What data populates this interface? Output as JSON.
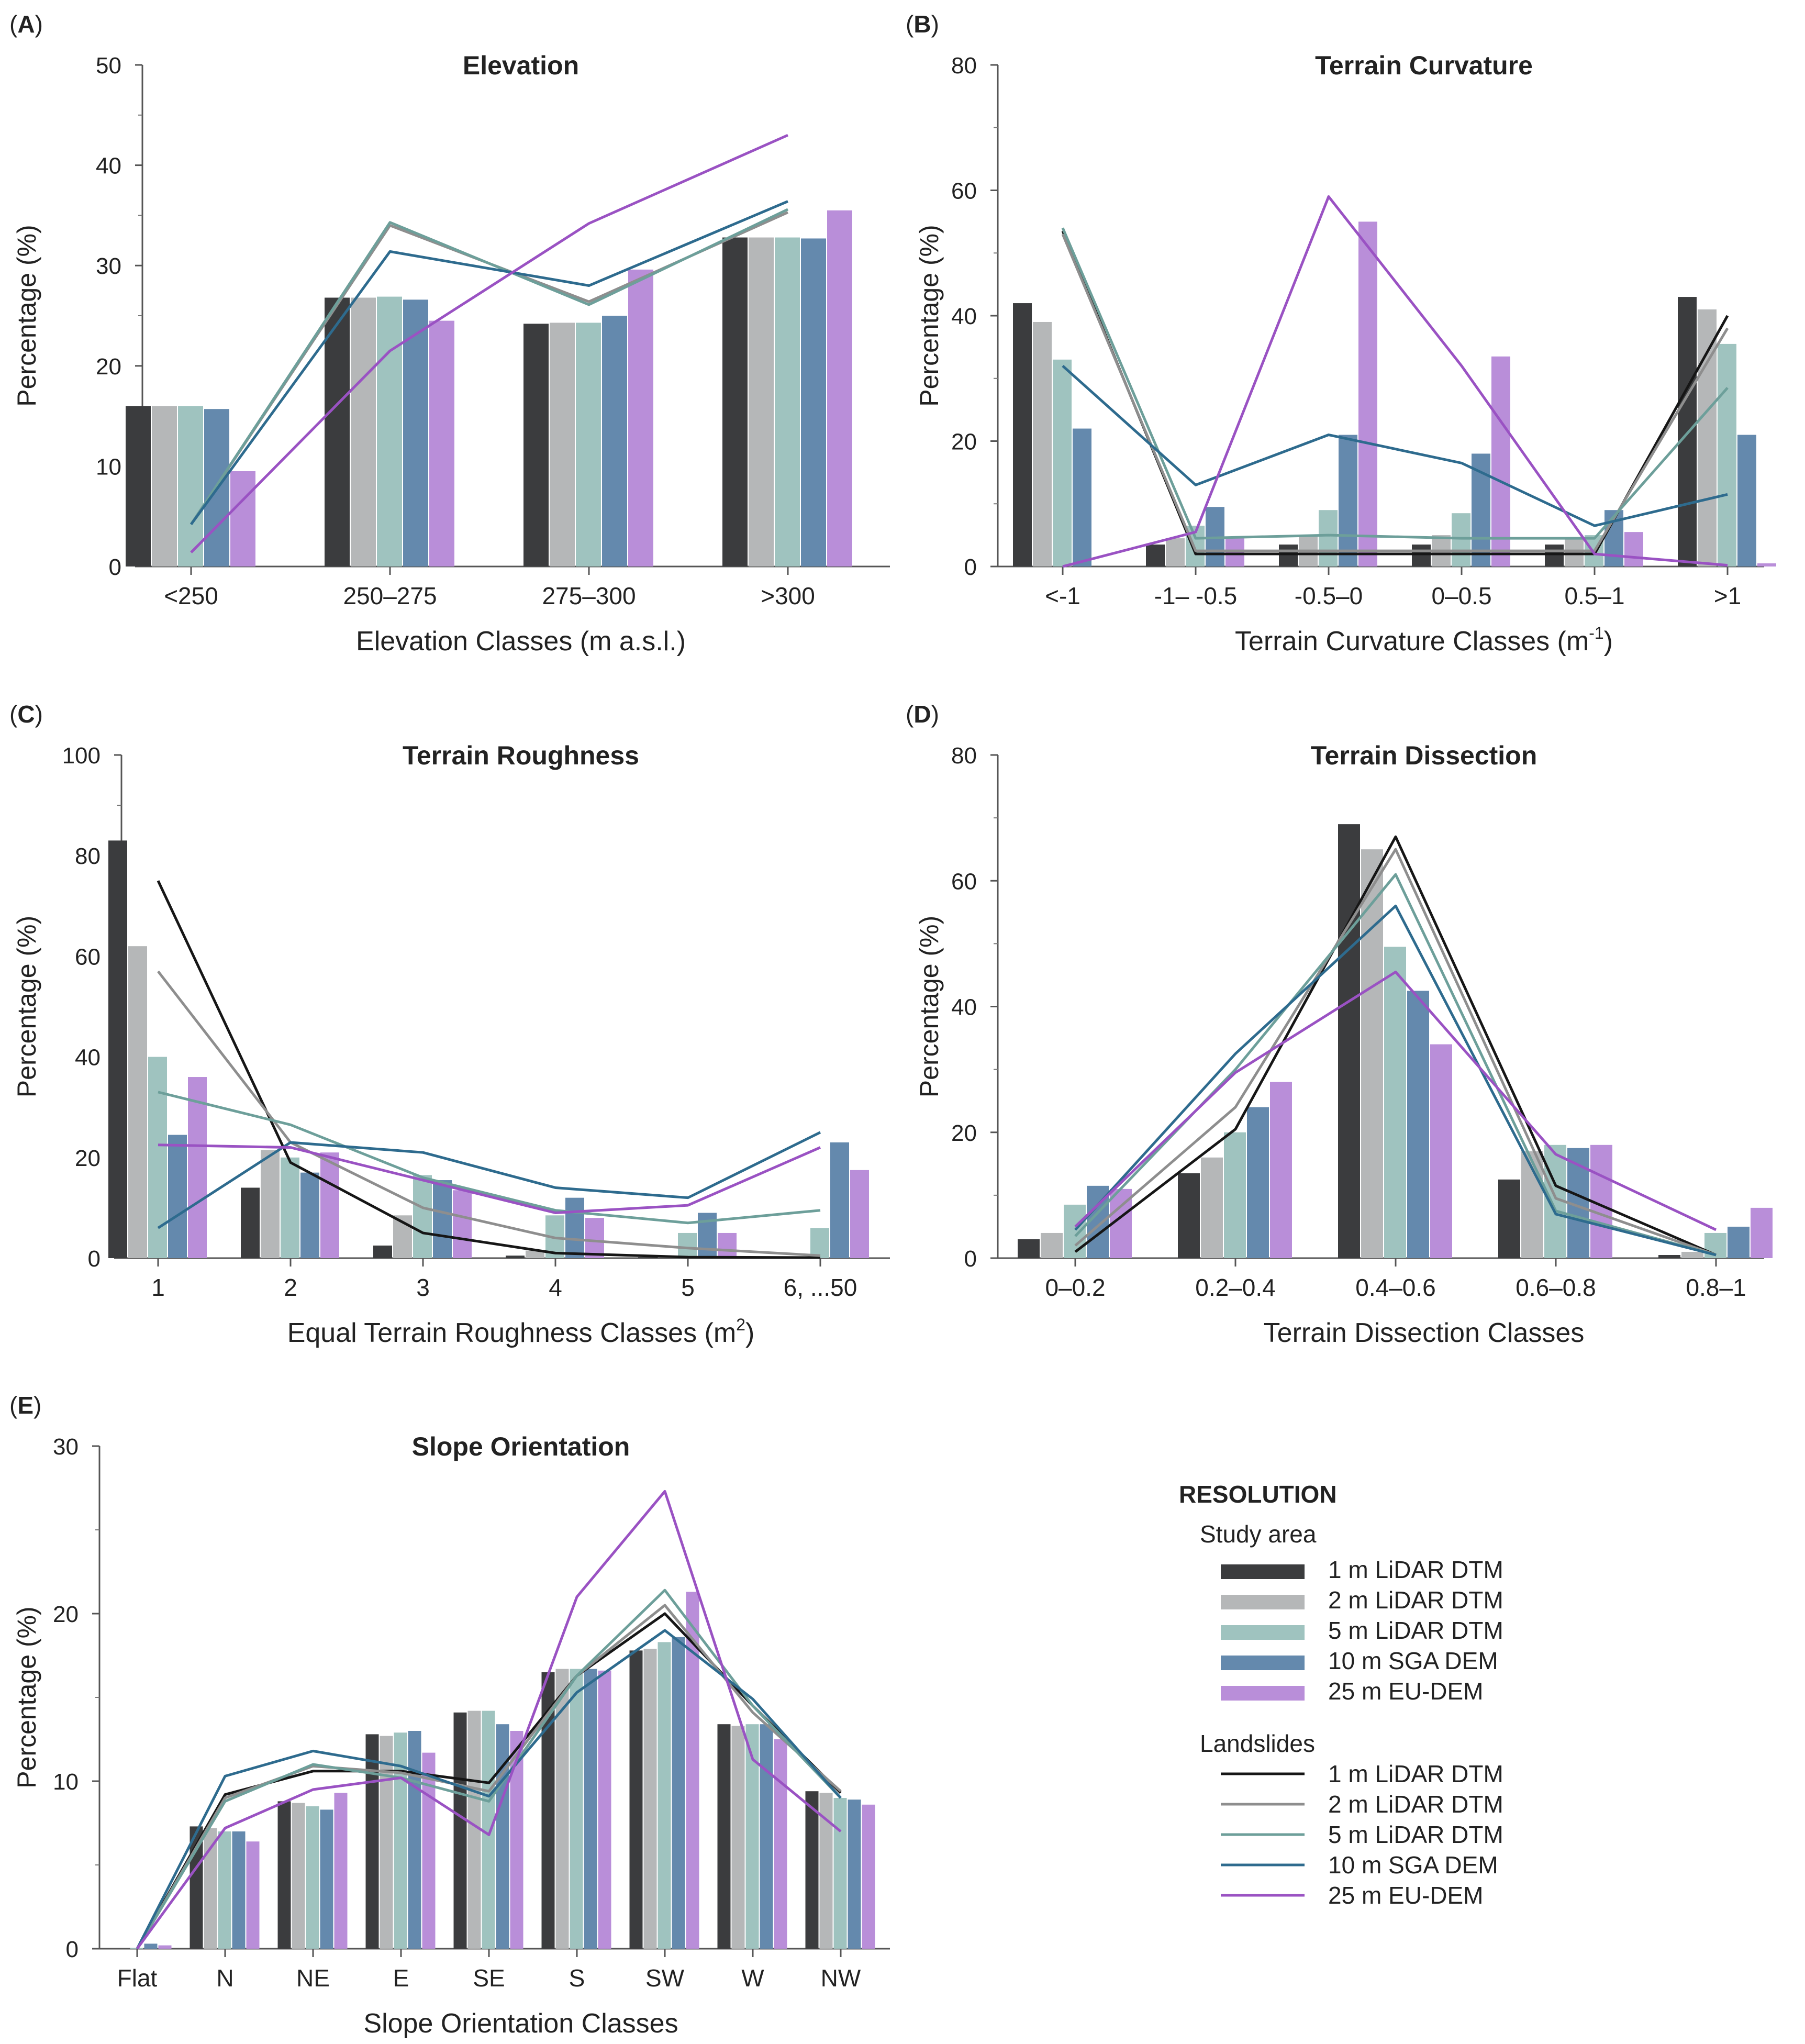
{
  "colors": {
    "r1": "#3b3c3e",
    "r2": "#b5b7b8",
    "r5": "#9fc3bf",
    "r10": "#6489ad",
    "r25": "#b98ed9",
    "l1": "#161616",
    "l2": "#8e8e8e",
    "l5": "#6d9f9a",
    "l10": "#2e6b8e",
    "l25": "#9a52c3"
  },
  "chart_data": [
    {
      "id": "A",
      "panel_label_letter": "A",
      "type": "bar+line",
      "title": "Elevation",
      "xlabel": "Elevation Classes (m a.s.l.)",
      "ylabel": "Percentage (%)",
      "ylim": [
        0,
        50
      ],
      "yticks": [
        "0",
        "10",
        "20",
        "30",
        "40",
        "50"
      ],
      "categories": [
        "<250",
        "250–275",
        "275–300",
        ">300"
      ],
      "bars": [
        {
          "name": "1 m LiDAR DTM",
          "color": "r1",
          "values": [
            16,
            26.8,
            24.2,
            32.8
          ]
        },
        {
          "name": "2 m LiDAR DTM",
          "color": "r2",
          "values": [
            16,
            26.8,
            24.3,
            32.8
          ]
        },
        {
          "name": "5 m LiDAR DTM",
          "color": "r5",
          "values": [
            16,
            26.9,
            24.3,
            32.8
          ]
        },
        {
          "name": "10 m SGA DEM",
          "color": "r10",
          "values": [
            15.7,
            26.6,
            25,
            32.7
          ]
        },
        {
          "name": "25 m EU-DEM",
          "color": "r25",
          "values": [
            9.5,
            24.5,
            29.6,
            35.5
          ]
        }
      ],
      "lines": [
        {
          "name": "1 m LiDAR DTM",
          "color": "l1",
          "values": [
            null,
            null,
            null,
            null
          ]
        },
        {
          "name": "2 m LiDAR DTM",
          "color": "l2",
          "values": [
            4.2,
            34,
            26.4,
            35.3
          ]
        },
        {
          "name": "5 m LiDAR DTM",
          "color": "l5",
          "values": [
            4.2,
            34.3,
            26.1,
            35.6
          ]
        },
        {
          "name": "10 m SGA DEM",
          "color": "l10",
          "values": [
            4.2,
            31.4,
            28,
            36.4
          ]
        },
        {
          "name": "25 m EU-DEM",
          "color": "l25",
          "values": [
            1.4,
            21.5,
            34.2,
            43
          ]
        }
      ]
    },
    {
      "id": "B",
      "panel_label_letter": "B",
      "type": "bar+line",
      "title": "Terrain Curvature",
      "xlabel": "Terrain Curvature Classes (m",
      "xlabel_sup": "-1",
      "xlabel_tail": ")",
      "ylabel": "Percentage (%)",
      "ylim": [
        0,
        80
      ],
      "yticks": [
        "0",
        "20",
        "40",
        "60",
        "80"
      ],
      "categories": [
        "<-1",
        "-1– -0.5",
        "-0.5–0",
        "0–0.5",
        "0.5–1",
        ">1"
      ],
      "bars": [
        {
          "name": "1 m LiDAR DTM",
          "color": "r1",
          "values": [
            42,
            3.5,
            3.5,
            3.5,
            3.5,
            43
          ]
        },
        {
          "name": "2 m LiDAR DTM",
          "color": "r2",
          "values": [
            39,
            4.5,
            5,
            5,
            4.5,
            41
          ]
        },
        {
          "name": "5 m LiDAR DTM",
          "color": "r5",
          "values": [
            33,
            6.5,
            9,
            8.5,
            5,
            35.5
          ]
        },
        {
          "name": "10 m SGA DEM",
          "color": "r10",
          "values": [
            22,
            9.5,
            21,
            18,
            9,
            21
          ]
        },
        {
          "name": "25 m EU-DEM",
          "color": "r25",
          "values": [
            0,
            4.5,
            55,
            33.5,
            5.5,
            0.5
          ]
        }
      ],
      "lines": [
        {
          "name": "1 m LiDAR DTM",
          "color": "l1",
          "values": [
            53.5,
            2,
            2,
            2,
            2,
            40
          ]
        },
        {
          "name": "2 m LiDAR DTM",
          "color": "l2",
          "values": [
            53,
            2.5,
            2.5,
            2.5,
            2.5,
            38
          ]
        },
        {
          "name": "5 m LiDAR DTM",
          "color": "l5",
          "values": [
            54,
            4.5,
            5,
            4.5,
            4.5,
            28.5
          ]
        },
        {
          "name": "10 m SGA DEM",
          "color": "l10",
          "values": [
            32,
            13,
            21,
            16.5,
            6.5,
            11.5
          ]
        },
        {
          "name": "25 m EU-DEM",
          "color": "l25",
          "values": [
            0,
            5.5,
            59,
            32,
            2,
            0.2
          ]
        }
      ]
    },
    {
      "id": "C",
      "panel_label_letter": "C",
      "type": "bar+line",
      "title": "Terrain Roughness",
      "xlabel": "Equal Terrain Roughness Classes (m",
      "xlabel_sup": "2",
      "xlabel_tail": ")",
      "ylabel": "Percentage (%)",
      "ylim": [
        0,
        100
      ],
      "yticks": [
        "0",
        "20",
        "40",
        "60",
        "80",
        "100"
      ],
      "categories": [
        "1",
        "2",
        "3",
        "4",
        "5",
        "6, ...50"
      ],
      "bars": [
        {
          "name": "1 m LiDAR DTM",
          "color": "r1",
          "values": [
            83,
            14,
            2.5,
            0.5,
            0.2,
            0.1
          ]
        },
        {
          "name": "2 m LiDAR DTM",
          "color": "r2",
          "values": [
            62,
            21.5,
            8.5,
            1.5,
            0.5,
            0.3
          ]
        },
        {
          "name": "5 m LiDAR DTM",
          "color": "r5",
          "values": [
            40,
            20,
            16.5,
            8.5,
            5,
            6
          ]
        },
        {
          "name": "10 m SGA DEM",
          "color": "r10",
          "values": [
            24.5,
            17,
            15.5,
            12,
            9,
            23
          ]
        },
        {
          "name": "25 m EU-DEM",
          "color": "r25",
          "values": [
            36,
            21,
            13.5,
            8,
            5,
            17.5
          ]
        }
      ],
      "lines": [
        {
          "name": "1 m LiDAR DTM",
          "color": "l1",
          "values": [
            75,
            19,
            5,
            1,
            0.2,
            0.1
          ]
        },
        {
          "name": "2 m LiDAR DTM",
          "color": "l2",
          "values": [
            57,
            23,
            10,
            4,
            2,
            0.5
          ]
        },
        {
          "name": "5 m LiDAR DTM",
          "color": "l5",
          "values": [
            33,
            26.5,
            16,
            9.5,
            7,
            9.5
          ]
        },
        {
          "name": "10 m SGA DEM",
          "color": "l10",
          "values": [
            6,
            23,
            21,
            14,
            12,
            25
          ]
        },
        {
          "name": "25 m EU-DEM",
          "color": "l25",
          "values": [
            22.5,
            22,
            15.5,
            9,
            10.5,
            22
          ]
        }
      ]
    },
    {
      "id": "D",
      "panel_label_letter": "D",
      "type": "bar+line",
      "title": "Terrain Dissection",
      "xlabel": "Terrain Dissection Classes",
      "ylabel": "Percentage (%)",
      "ylim": [
        0,
        80
      ],
      "yticks": [
        "0",
        "20",
        "40",
        "60",
        "80"
      ],
      "categories": [
        "0–0.2",
        "0.2–0.4",
        "0.4–0.6",
        "0.6–0.8",
        "0.8–1"
      ],
      "bars": [
        {
          "name": "1 m LiDAR DTM",
          "color": "r1",
          "values": [
            3,
            13.5,
            69,
            12.5,
            0.5
          ]
        },
        {
          "name": "2 m LiDAR DTM",
          "color": "r2",
          "values": [
            4,
            16,
            65,
            17,
            1
          ]
        },
        {
          "name": "5 m LiDAR DTM",
          "color": "r5",
          "values": [
            8.5,
            20,
            49.5,
            18,
            4
          ]
        },
        {
          "name": "10 m SGA DEM",
          "color": "r10",
          "values": [
            11.5,
            24,
            42.5,
            17.5,
            5
          ]
        },
        {
          "name": "25 m EU-DEM",
          "color": "r25",
          "values": [
            11,
            28,
            34,
            18,
            8
          ]
        }
      ],
      "lines": [
        {
          "name": "1 m LiDAR DTM",
          "color": "l1",
          "values": [
            1,
            20.5,
            67,
            11.5,
            0.5
          ]
        },
        {
          "name": "2 m LiDAR DTM",
          "color": "l2",
          "values": [
            2,
            24,
            65,
            9.5,
            0.5
          ]
        },
        {
          "name": "5 m LiDAR DTM",
          "color": "l5",
          "values": [
            3.5,
            30,
            61,
            7.5,
            0.5
          ]
        },
        {
          "name": "10 m SGA DEM",
          "color": "l10",
          "values": [
            4.5,
            32.5,
            56,
            7,
            0.5
          ]
        },
        {
          "name": "25 m EU-DEM",
          "color": "l25",
          "values": [
            5,
            29.5,
            45.5,
            16.5,
            4.5
          ]
        }
      ]
    },
    {
      "id": "E",
      "panel_label_letter": "E",
      "type": "bar+line",
      "title": "Slope Orientation",
      "xlabel": "Slope Orientation Classes",
      "ylabel": "Percentage (%)",
      "ylim": [
        0,
        30
      ],
      "yticks": [
        "0",
        "10",
        "20",
        "30"
      ],
      "categories": [
        "Flat",
        "N",
        "NE",
        "E",
        "SE",
        "S",
        "SW",
        "W",
        "NW"
      ],
      "bars": [
        {
          "name": "1 m LiDAR DTM",
          "color": "r1",
          "values": [
            0,
            7.3,
            8.8,
            12.8,
            14.1,
            16.5,
            17.8,
            13.4,
            9.4
          ]
        },
        {
          "name": "2 m LiDAR DTM",
          "color": "r2",
          "values": [
            0,
            7.2,
            8.7,
            12.7,
            14.2,
            16.7,
            17.9,
            13.3,
            9.3
          ]
        },
        {
          "name": "5 m LiDAR DTM",
          "color": "r5",
          "values": [
            0.05,
            7.0,
            8.5,
            12.9,
            14.2,
            16.7,
            18.3,
            13.4,
            9.0
          ]
        },
        {
          "name": "10 m SGA DEM",
          "color": "r10",
          "values": [
            0.3,
            7.0,
            8.3,
            13.0,
            13.4,
            16.7,
            18.6,
            13.4,
            8.9
          ]
        },
        {
          "name": "25 m EU-DEM",
          "color": "r25",
          "values": [
            0.2,
            6.4,
            9.3,
            11.7,
            13.0,
            16.6,
            21.3,
            12.5,
            8.6
          ]
        }
      ],
      "lines": [
        {
          "name": "1 m LiDAR DTM",
          "color": "l1",
          "values": [
            0,
            9.2,
            10.6,
            10.6,
            9.9,
            16.3,
            20.0,
            14.5,
            9.3
          ]
        },
        {
          "name": "2 m LiDAR DTM",
          "color": "l2",
          "values": [
            0,
            9.0,
            10.9,
            10.5,
            9.4,
            16.3,
            20.5,
            14.1,
            9.4
          ]
        },
        {
          "name": "5 m LiDAR DTM",
          "color": "l5",
          "values": [
            0,
            8.8,
            11.0,
            10.2,
            8.8,
            16.3,
            21.4,
            14.5,
            9.0
          ]
        },
        {
          "name": "10 m SGA DEM",
          "color": "l10",
          "values": [
            0,
            10.3,
            11.8,
            10.9,
            9.1,
            15.3,
            19.0,
            14.9,
            9.0
          ]
        },
        {
          "name": "25 m EU-DEM",
          "color": "l25",
          "values": [
            0,
            7.2,
            9.5,
            10.2,
            6.8,
            21.0,
            27.3,
            11.3,
            7.0
          ]
        }
      ]
    }
  ],
  "legend": {
    "title": "RESOLUTION",
    "bars_heading": "Study area",
    "lines_heading": "Landslides",
    "bar_entries": [
      {
        "label": "1 m LiDAR DTM",
        "color": "r1"
      },
      {
        "label": "2 m LiDAR DTM",
        "color": "r2"
      },
      {
        "label": "5 m LiDAR DTM",
        "color": "r5"
      },
      {
        "label": "10 m SGA DEM",
        "color": "r10"
      },
      {
        "label": "25 m EU-DEM",
        "color": "r25"
      }
    ],
    "line_entries": [
      {
        "label": "1 m LiDAR DTM",
        "color": "l1"
      },
      {
        "label": "2 m LiDAR DTM",
        "color": "l2"
      },
      {
        "label": "5 m LiDAR DTM",
        "color": "l5"
      },
      {
        "label": "10 m SGA DEM",
        "color": "l10"
      },
      {
        "label": "25 m EU-DEM",
        "color": "l25"
      }
    ]
  }
}
